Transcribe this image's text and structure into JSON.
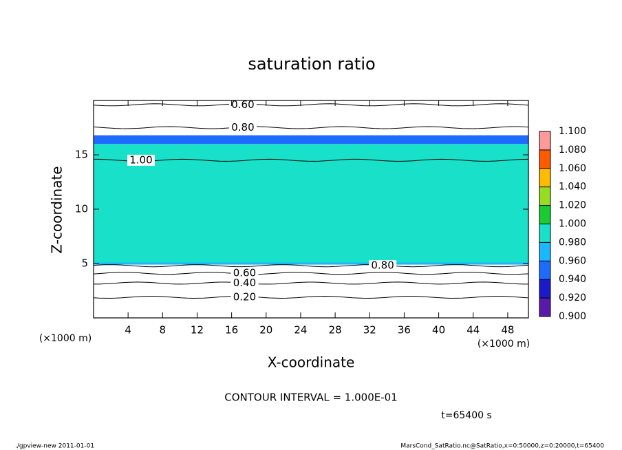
{
  "chart_data": {
    "type": "contour",
    "title": "saturation ratio",
    "x_label": "X-coordinate",
    "y_label": "Z-coordinate",
    "x_unit": "(×1000 m)",
    "y_unit": "(×1000 m)",
    "xlim": [
      0,
      50.4
    ],
    "ylim": [
      0,
      20
    ],
    "xticks": [
      4,
      8,
      12,
      16,
      20,
      24,
      28,
      32,
      36,
      40,
      44,
      48
    ],
    "yticks": [
      5,
      10,
      15
    ],
    "colorbar": {
      "lim": [
        0.9,
        1.1
      ],
      "ticks": [
        {
          "value": 0.9,
          "label": "0.900"
        },
        {
          "value": 0.92,
          "label": "0.920"
        },
        {
          "value": 0.94,
          "label": "0.940"
        },
        {
          "value": 0.96,
          "label": "0.960"
        },
        {
          "value": 0.98,
          "label": "0.980"
        },
        {
          "value": 1.0,
          "label": "1.000"
        },
        {
          "value": 1.02,
          "label": "1.020"
        },
        {
          "value": 1.04,
          "label": "1.040"
        },
        {
          "value": 1.06,
          "label": "1.060"
        },
        {
          "value": 1.08,
          "label": "1.080"
        },
        {
          "value": 1.1,
          "label": "1.100"
        }
      ],
      "colors": [
        "#5a1aa8",
        "#1a1ac8",
        "#1e6cff",
        "#19b8ff",
        "#19e0c8",
        "#19cc33",
        "#99dd22",
        "#ffbb00",
        "#ff5a00",
        "#ff9a9a"
      ]
    },
    "regions": [
      {
        "zmin": 5,
        "zmax": 16,
        "value": 0.99
      },
      {
        "zmin": 16,
        "zmax": 16.8,
        "value": 0.95
      },
      {
        "zmin": 4.9,
        "zmax": 5.1,
        "value": 0.97
      }
    ],
    "contours": [
      {
        "level": 0.2,
        "label": "0.20",
        "z": 1.9,
        "x": 17.5
      },
      {
        "level": 0.4,
        "label": "0.40",
        "z": 3.2,
        "x": 17.5
      },
      {
        "level": 0.6,
        "label": "0.60",
        "z": 4.1,
        "x": 17.5
      },
      {
        "level": 0.8,
        "label": "0.80",
        "z": 4.8,
        "x": 33.5
      },
      {
        "level": 1.0,
        "label": "1.00",
        "z": 14.5,
        "x": 5.5
      },
      {
        "level": 0.8,
        "label": "0.80",
        "z": 17.5,
        "x": 17.3
      },
      {
        "level": 0.6,
        "label": "0.60",
        "z": 19.6,
        "x": 17.3
      }
    ],
    "annotation": "CONTOUR INTERVAL = 1.000E-01",
    "time_label": "t=65400 s",
    "footer_left": "./gpview-new   2011-01-01",
    "footer_right": "MarsCond_SatRatio.nc@SatRatio,x=0:50000,z=0:20000,t=65400"
  }
}
